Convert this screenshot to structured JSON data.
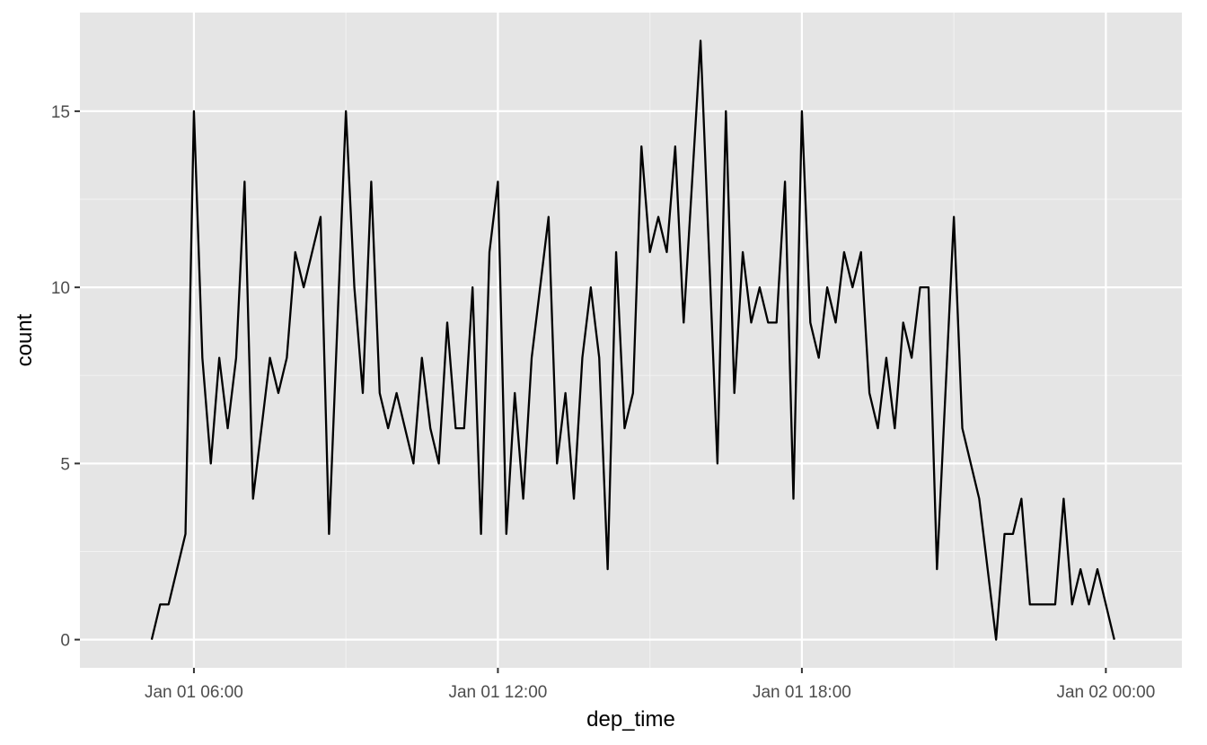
{
  "colors": {
    "panel_background": "#e5e5e5",
    "grid_major": "#ffffff",
    "grid_minor": "#f2f2f2",
    "line": "#000000",
    "tick_text": "#4d4d4d"
  },
  "chart_data": {
    "type": "line",
    "title": "",
    "xlabel": "dep_time",
    "ylabel": "count",
    "x_scale": "datetime",
    "xlim": [
      "2013-01-01 03:45",
      "2013-01-02 01:30"
    ],
    "ylim": [
      -0.8,
      17.8
    ],
    "x_ticks": [
      {
        "value": "2013-01-01 06:00",
        "label": "Jan 01 06:00"
      },
      {
        "value": "2013-01-01 12:00",
        "label": "Jan 01 12:00"
      },
      {
        "value": "2013-01-01 18:00",
        "label": "Jan 01 18:00"
      },
      {
        "value": "2013-01-02 00:00",
        "label": "Jan 02 00:00"
      }
    ],
    "x_minor_breaks": [
      "2013-01-01 09:00",
      "2013-01-01 15:00",
      "2013-01-01 21:00"
    ],
    "y_ticks": [
      0,
      5,
      10,
      15
    ],
    "y_minor_breaks": [
      2.5,
      7.5,
      12.5
    ],
    "grid": true,
    "legend": "none",
    "series": [
      {
        "x": [
          "2013-01-01 05:10",
          "2013-01-01 05:20",
          "2013-01-01 05:30",
          "2013-01-01 05:40",
          "2013-01-01 05:50",
          "2013-01-01 06:00",
          "2013-01-01 06:10",
          "2013-01-01 06:20",
          "2013-01-01 06:30",
          "2013-01-01 06:40",
          "2013-01-01 06:50",
          "2013-01-01 07:00",
          "2013-01-01 07:10",
          "2013-01-01 07:20",
          "2013-01-01 07:30",
          "2013-01-01 07:40",
          "2013-01-01 07:50",
          "2013-01-01 08:00",
          "2013-01-01 08:10",
          "2013-01-01 08:20",
          "2013-01-01 08:30",
          "2013-01-01 08:40",
          "2013-01-01 08:50",
          "2013-01-01 09:00",
          "2013-01-01 09:10",
          "2013-01-01 09:20",
          "2013-01-01 09:30",
          "2013-01-01 09:40",
          "2013-01-01 09:50",
          "2013-01-01 10:00",
          "2013-01-01 10:10",
          "2013-01-01 10:20",
          "2013-01-01 10:30",
          "2013-01-01 10:40",
          "2013-01-01 10:50",
          "2013-01-01 11:00",
          "2013-01-01 11:10",
          "2013-01-01 11:20",
          "2013-01-01 11:30",
          "2013-01-01 11:40",
          "2013-01-01 11:50",
          "2013-01-01 12:00",
          "2013-01-01 12:10",
          "2013-01-01 12:20",
          "2013-01-01 12:30",
          "2013-01-01 12:40",
          "2013-01-01 12:50",
          "2013-01-01 13:00",
          "2013-01-01 13:10",
          "2013-01-01 13:20",
          "2013-01-01 13:30",
          "2013-01-01 13:40",
          "2013-01-01 13:50",
          "2013-01-01 14:00",
          "2013-01-01 14:10",
          "2013-01-01 14:20",
          "2013-01-01 14:30",
          "2013-01-01 14:40",
          "2013-01-01 14:50",
          "2013-01-01 15:00",
          "2013-01-01 15:10",
          "2013-01-01 15:20",
          "2013-01-01 15:30",
          "2013-01-01 15:40",
          "2013-01-01 15:50",
          "2013-01-01 16:00",
          "2013-01-01 16:10",
          "2013-01-01 16:20",
          "2013-01-01 16:30",
          "2013-01-01 16:40",
          "2013-01-01 16:50",
          "2013-01-01 17:00",
          "2013-01-01 17:10",
          "2013-01-01 17:20",
          "2013-01-01 17:30",
          "2013-01-01 17:40",
          "2013-01-01 17:50",
          "2013-01-01 18:00",
          "2013-01-01 18:10",
          "2013-01-01 18:20",
          "2013-01-01 18:30",
          "2013-01-01 18:40",
          "2013-01-01 18:50",
          "2013-01-01 19:00",
          "2013-01-01 19:10",
          "2013-01-01 19:20",
          "2013-01-01 19:30",
          "2013-01-01 19:40",
          "2013-01-01 19:50",
          "2013-01-01 20:00",
          "2013-01-01 20:10",
          "2013-01-01 20:20",
          "2013-01-01 20:30",
          "2013-01-01 20:40",
          "2013-01-01 20:50",
          "2013-01-01 21:00",
          "2013-01-01 21:10",
          "2013-01-01 21:20",
          "2013-01-01 21:30",
          "2013-01-01 21:40",
          "2013-01-01 21:50",
          "2013-01-01 22:00",
          "2013-01-01 22:10",
          "2013-01-01 22:20",
          "2013-01-01 22:30",
          "2013-01-01 22:40",
          "2013-01-01 22:50",
          "2013-01-01 23:00",
          "2013-01-01 23:10",
          "2013-01-01 23:20",
          "2013-01-01 23:30",
          "2013-01-01 23:40",
          "2013-01-01 23:50",
          "2013-01-02 00:00",
          "2013-01-02 00:10"
        ],
        "values": [
          0,
          1,
          1,
          2,
          3,
          15,
          8,
          5,
          8,
          6,
          8,
          13,
          4,
          6,
          8,
          7,
          8,
          11,
          10,
          11,
          12,
          3,
          9,
          15,
          10,
          7,
          13,
          7,
          6,
          7,
          6,
          5,
          8,
          6,
          5,
          9,
          6,
          6,
          10,
          3,
          11,
          13,
          3,
          7,
          4,
          8,
          10,
          12,
          5,
          7,
          4,
          8,
          10,
          8,
          2,
          11,
          6,
          7,
          14,
          11,
          12,
          11,
          14,
          9,
          13,
          17,
          11,
          5,
          15,
          7,
          11,
          9,
          10,
          9,
          9,
          13,
          4,
          15,
          9,
          8,
          10,
          9,
          11,
          10,
          11,
          7,
          6,
          8,
          6,
          9,
          8,
          10,
          10,
          2,
          7,
          12,
          6,
          5,
          4,
          2,
          0,
          3,
          3,
          4,
          1,
          1,
          1,
          1,
          4,
          1,
          2,
          1,
          2,
          1,
          0
        ]
      }
    ]
  }
}
